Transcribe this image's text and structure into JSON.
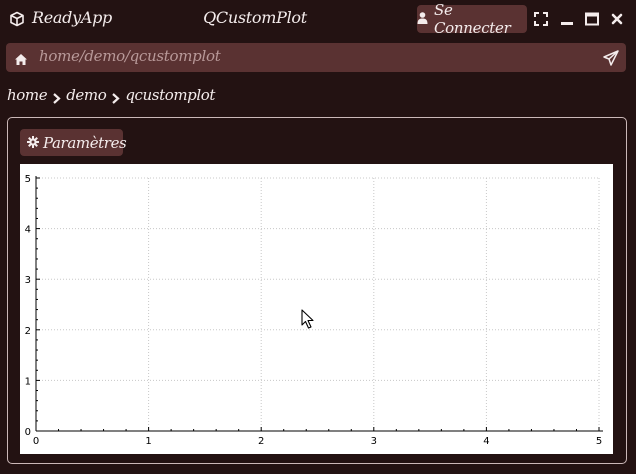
{
  "titlebar": {
    "app_name": "ReadyApp",
    "window_title": "QCustomPlot",
    "login_label": "Se Connecter"
  },
  "addressbar": {
    "url": "home/demo/qcustomplot"
  },
  "breadcrumb": {
    "items": [
      "home",
      "demo",
      "qcustomplot"
    ]
  },
  "panel": {
    "params_label": "Paramètres"
  },
  "chart_data": {
    "type": "line",
    "title": "",
    "xlabel": "",
    "ylabel": "",
    "xlim": [
      0,
      5
    ],
    "ylim": [
      0,
      5
    ],
    "x_ticks": [
      "0",
      "1",
      "2",
      "3",
      "4",
      "5"
    ],
    "y_ticks": [
      "0",
      "1",
      "2",
      "3",
      "4",
      "5"
    ],
    "grid": true,
    "series": []
  },
  "colors": {
    "background": "#231212",
    "button": "#5a3232",
    "text": "#f4ecec",
    "address_text": "#b89999",
    "plot_background": "#ffffff"
  }
}
